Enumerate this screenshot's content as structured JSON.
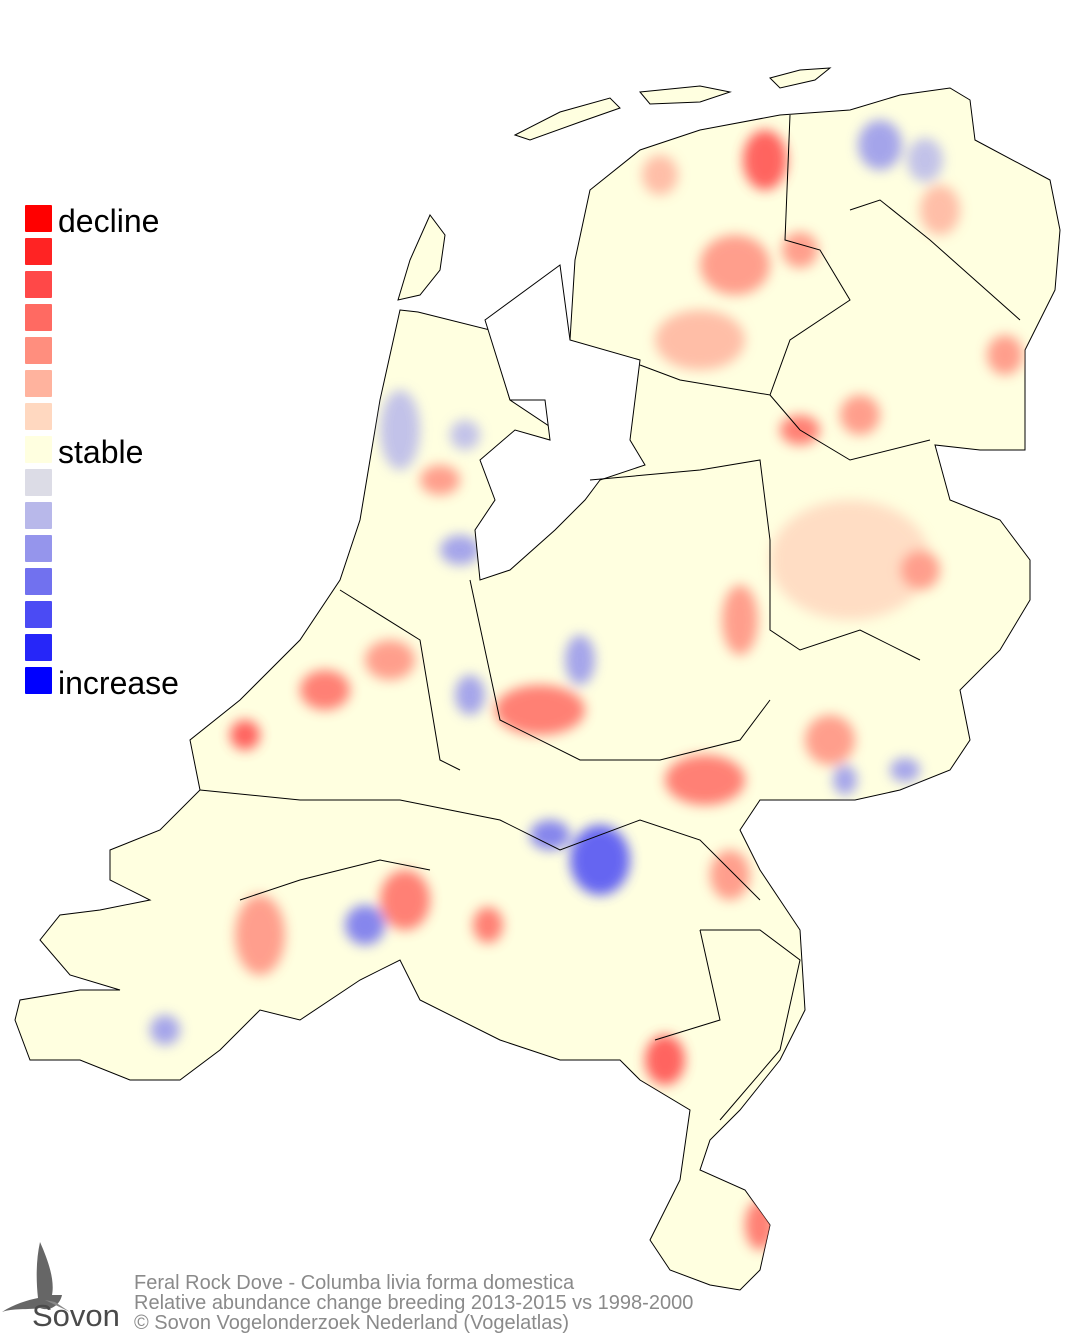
{
  "legend": {
    "labels": {
      "decline": "decline",
      "stable": "stable",
      "increase": "increase"
    },
    "colors": [
      "#ff0000",
      "#ff2323",
      "#ff4848",
      "#ff6a62",
      "#ff8e7e",
      "#ffb39e",
      "#ffd8c0",
      "#ffffe0",
      "#dcdce6",
      "#b8b8ea",
      "#9595ec",
      "#7171ef",
      "#4b4bf4",
      "#2626f9",
      "#0000ff"
    ]
  },
  "map": {
    "land_color": "#ffffe0",
    "border_color": "#000000"
  },
  "footer": {
    "line1": "Feral Rock Dove - Columba livia forma domestica",
    "line2": "Relative abundance change breeding 2013-2015 vs 1998-2000",
    "line3": "© Sovon Vogelonderzoek Nederland (Vogelatlas)"
  },
  "logo": {
    "text": "Sovon"
  }
}
